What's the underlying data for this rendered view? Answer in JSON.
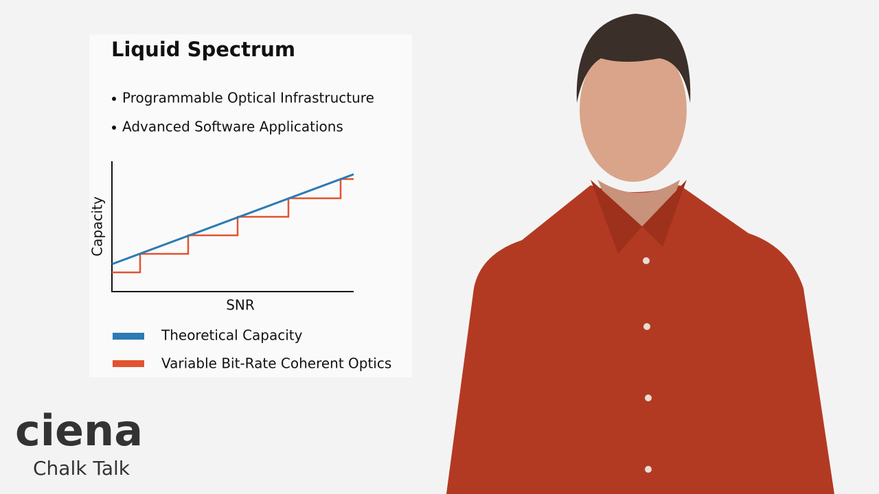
{
  "header": {
    "title": "Liquid Spectrum",
    "bullets": [
      "Programmable Optical Infrastructure",
      "Advanced Software Applications"
    ]
  },
  "chart_data": {
    "type": "line",
    "x_label": "SNR",
    "y_label": "Capacity",
    "series": [
      {
        "name": "Theoretical Capacity",
        "color": "#2b7bb4"
      },
      {
        "name": "Variable Bit-Rate Coherent Optics",
        "color": "#e2532f"
      }
    ]
  },
  "logo": {
    "brand": "ciena",
    "subtitle": "Chalk Talk"
  }
}
